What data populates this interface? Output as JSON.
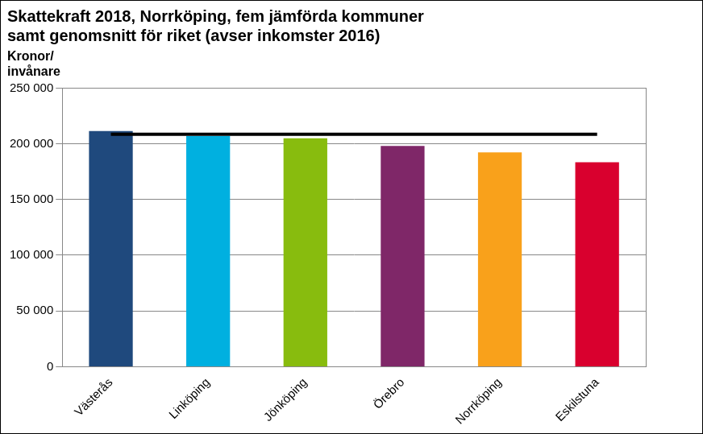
{
  "chart_data": {
    "type": "bar",
    "title": [
      "Skattekraft 2018, Norrköping, fem jämförda kommuner",
      "samt genomsnitt för riket (avser inkomster 2016)"
    ],
    "ylabel": [
      "Kronor/",
      "invånare"
    ],
    "categories": [
      "Västerås",
      "Linköping",
      "Jönköping",
      "Örebro",
      "Norrköping",
      "Eskilstuna"
    ],
    "series": [
      {
        "type": "bar",
        "colors": [
          "#1f497d",
          "#00b0e0",
          "#88bc0e",
          "#7f2768",
          "#f9a11b",
          "#d9002e"
        ],
        "values": [
          211500,
          207000,
          205000,
          198000,
          192300,
          183400
        ]
      },
      {
        "type": "line",
        "color": "#000000",
        "values": [
          208500,
          208500,
          208500,
          208500,
          208500,
          208500
        ]
      }
    ],
    "ylim": [
      0,
      250000
    ],
    "yticks": [
      0,
      {
        "value": 50000,
        "label": "50 000"
      },
      {
        "value": 100000,
        "label": "100 000"
      },
      {
        "value": 150000,
        "label": "150 000"
      },
      {
        "value": 200000,
        "label": "200 000"
      },
      {
        "value": 250000,
        "label": "250 000"
      }
    ],
    "grid": true
  }
}
